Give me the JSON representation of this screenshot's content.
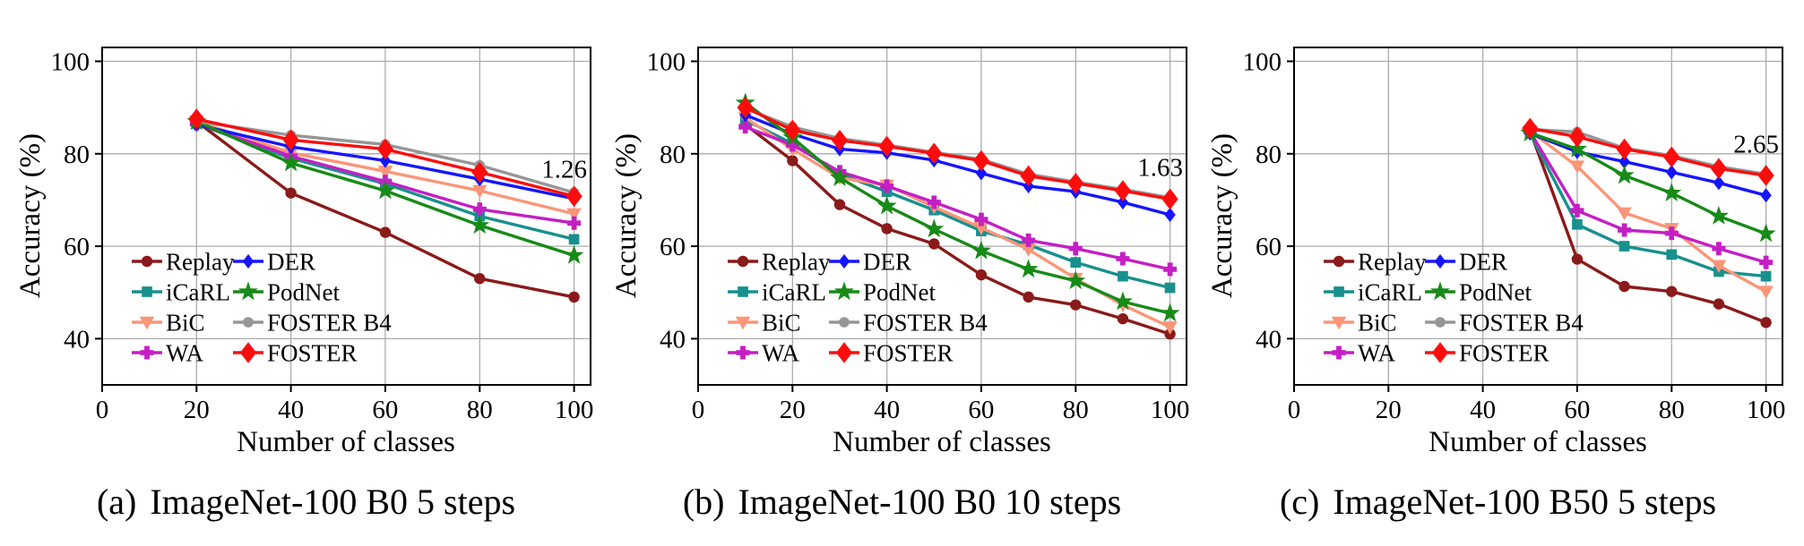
{
  "figure": {
    "background": "#ffffff",
    "grid_color": "#ababab",
    "axis_color": "#000000",
    "xlabel": "Number of classes",
    "ylabel": "Accuracy (%)"
  },
  "chart_data": [
    {
      "id": "a",
      "type": "line",
      "caption_tag": "(a)",
      "caption": "ImageNet-100 B0 5 steps",
      "xlabel": "Number of classes",
      "ylabel": "Accuracy (%)",
      "xlim": [
        0,
        103.5
      ],
      "ylim": [
        30,
        103
      ],
      "xticks": [
        0,
        20,
        40,
        60,
        80,
        100
      ],
      "yticks": [
        40,
        60,
        80,
        100
      ],
      "grid": true,
      "legend_position": "lower-left",
      "legend_columns": [
        [
          "Replay",
          "iCaRL",
          "BiC",
          "WA"
        ],
        [
          "DER",
          "PodNet",
          "FOSTER B4",
          "FOSTER"
        ]
      ],
      "annotation": {
        "text": "1.26",
        "y": 74.85
      },
      "x": [
        20,
        40,
        60,
        80,
        100
      ],
      "series": [
        {
          "name": "Replay",
          "color": "#8B1A1A",
          "marker": "circle",
          "marker_size": 13,
          "values": [
            87.0,
            71.5,
            63.0,
            53.0,
            49.0
          ]
        },
        {
          "name": "iCaRL",
          "color": "#18908E",
          "marker": "square",
          "marker_size": 13,
          "values": [
            86.5,
            79.0,
            73.5,
            66.5,
            61.5
          ]
        },
        {
          "name": "BiC",
          "color": "#FB9577",
          "marker": "triangle-down",
          "marker_size": 15,
          "values": [
            87.0,
            80.2,
            76.2,
            72.0,
            67.0
          ]
        },
        {
          "name": "WA",
          "color": "#C41FC4",
          "marker": "plus",
          "marker_size": 15,
          "values": [
            86.5,
            79.5,
            74.0,
            68.0,
            65.0
          ]
        },
        {
          "name": "DER",
          "color": "#1515FF",
          "marker": "diamond",
          "marker_size": 13,
          "values": [
            86.3,
            81.5,
            78.5,
            74.5,
            70.3
          ]
        },
        {
          "name": "PodNet",
          "color": "#178A17",
          "marker": "star",
          "marker_size": 16,
          "values": [
            87.0,
            78.0,
            72.0,
            64.5,
            58.0
          ]
        },
        {
          "name": "FOSTER B4",
          "color": "#969696",
          "marker": "circle",
          "marker_size": 12,
          "values": [
            87.0,
            84.0,
            82.0,
            77.5,
            71.6
          ]
        },
        {
          "name": "FOSTER",
          "color": "#FC0D0D",
          "marker": "diamond",
          "marker_size": 19,
          "values": [
            87.5,
            83.0,
            81.0,
            76.0,
            70.8
          ]
        }
      ]
    },
    {
      "id": "b",
      "type": "line",
      "caption_tag": "(b)",
      "caption": "ImageNet-100 B0 10 steps",
      "xlabel": "Number of classes",
      "ylabel": "Accuracy (%)",
      "xlim": [
        0,
        103.5
      ],
      "ylim": [
        30,
        103
      ],
      "xticks": [
        0,
        20,
        40,
        60,
        80,
        100
      ],
      "yticks": [
        40,
        60,
        80,
        100
      ],
      "grid": true,
      "legend_position": "lower-left",
      "legend_columns": [
        [
          "Replay",
          "iCaRL",
          "BiC",
          "WA"
        ],
        [
          "DER",
          "PodNet",
          "FOSTER B4",
          "FOSTER"
        ]
      ],
      "annotation": {
        "text": "1.63",
        "y": 75.2
      },
      "x": [
        10,
        20,
        30,
        40,
        50,
        60,
        70,
        80,
        90,
        100
      ],
      "series": [
        {
          "name": "Replay",
          "color": "#8B1A1A",
          "marker": "circle",
          "marker_size": 13,
          "values": [
            86.3,
            78.5,
            69.0,
            63.8,
            60.5,
            53.8,
            49.0,
            47.3,
            44.3,
            41.0
          ]
        },
        {
          "name": "iCaRL",
          "color": "#18908E",
          "marker": "square",
          "marker_size": 13,
          "values": [
            87.3,
            82.2,
            75.6,
            71.8,
            67.8,
            63.3,
            60.3,
            56.5,
            53.5,
            51.0
          ]
        },
        {
          "name": "BiC",
          "color": "#FB9577",
          "marker": "triangle-down",
          "marker_size": 15,
          "values": [
            87.8,
            81.0,
            74.8,
            73.2,
            68.5,
            64.0,
            59.3,
            53.0,
            47.3,
            42.5
          ]
        },
        {
          "name": "WA",
          "color": "#C41FC4",
          "marker": "plus",
          "marker_size": 15,
          "values": [
            85.8,
            81.9,
            76.1,
            73.0,
            69.5,
            65.8,
            61.3,
            59.5,
            57.3,
            55.0
          ]
        },
        {
          "name": "DER",
          "color": "#1515FF",
          "marker": "diamond",
          "marker_size": 13,
          "values": [
            88.4,
            84.3,
            81.0,
            80.2,
            78.6,
            75.8,
            73.0,
            71.8,
            69.5,
            66.8
          ]
        },
        {
          "name": "PodNet",
          "color": "#178A17",
          "marker": "star",
          "marker_size": 16,
          "values": [
            91.0,
            83.5,
            74.8,
            68.7,
            63.7,
            59.0,
            55.0,
            52.5,
            48.0,
            45.5
          ]
        },
        {
          "name": "FOSTER B4",
          "color": "#969696",
          "marker": "circle",
          "marker_size": 12,
          "values": [
            89.8,
            85.8,
            83.3,
            81.9,
            80.3,
            78.8,
            75.6,
            73.9,
            72.3,
            70.5
          ]
        },
        {
          "name": "FOSTER",
          "color": "#FC0D0D",
          "marker": "diamond",
          "marker_size": 19,
          "values": [
            90.0,
            85.1,
            82.9,
            81.6,
            80.1,
            78.5,
            75.2,
            73.6,
            72.0,
            70.2
          ]
        }
      ]
    },
    {
      "id": "c",
      "type": "line",
      "caption_tag": "(c)",
      "caption": "ImageNet-100 B50 5 steps",
      "xlabel": "Number of classes",
      "ylabel": "Accuracy (%)",
      "xlim": [
        0,
        103.5
      ],
      "ylim": [
        30,
        103
      ],
      "xticks": [
        0,
        20,
        40,
        60,
        80,
        100
      ],
      "yticks": [
        40,
        60,
        80,
        100
      ],
      "grid": true,
      "legend_position": "lower-left",
      "legend_columns": [
        [
          "Replay",
          "iCaRL",
          "BiC",
          "WA"
        ],
        [
          "DER",
          "PodNet",
          "FOSTER B4",
          "FOSTER"
        ]
      ],
      "annotation": {
        "text": "2.65",
        "y": 80.2
      },
      "x": [
        50,
        60,
        70,
        80,
        90,
        100
      ],
      "series": [
        {
          "name": "Replay",
          "color": "#8B1A1A",
          "marker": "circle",
          "marker_size": 13,
          "values": [
            85.0,
            57.2,
            51.3,
            50.2,
            47.5,
            43.5
          ]
        },
        {
          "name": "iCaRL",
          "color": "#18908E",
          "marker": "square",
          "marker_size": 13,
          "values": [
            84.4,
            64.7,
            60.0,
            58.2,
            54.5,
            53.5
          ]
        },
        {
          "name": "BiC",
          "color": "#FB9577",
          "marker": "triangle-down",
          "marker_size": 15,
          "values": [
            84.9,
            77.3,
            67.2,
            63.8,
            55.8,
            50.2
          ]
        },
        {
          "name": "WA",
          "color": "#C41FC4",
          "marker": "plus",
          "marker_size": 15,
          "values": [
            84.8,
            67.7,
            63.5,
            62.8,
            59.5,
            56.5
          ]
        },
        {
          "name": "DER",
          "color": "#1515FF",
          "marker": "diamond",
          "marker_size": 13,
          "values": [
            84.4,
            80.4,
            78.3,
            76.0,
            73.7,
            71.0
          ]
        },
        {
          "name": "PodNet",
          "color": "#178A17",
          "marker": "star",
          "marker_size": 16,
          "values": [
            84.5,
            81.0,
            75.3,
            71.5,
            66.5,
            62.7
          ]
        },
        {
          "name": "FOSTER B4",
          "color": "#969696",
          "marker": "circle",
          "marker_size": 12,
          "values": [
            85.3,
            84.7,
            81.2,
            79.6,
            77.2,
            75.6
          ]
        },
        {
          "name": "FOSTER",
          "color": "#FC0D0D",
          "marker": "diamond",
          "marker_size": 19,
          "values": [
            85.5,
            83.7,
            81.0,
            79.3,
            76.8,
            75.3
          ]
        }
      ]
    }
  ]
}
